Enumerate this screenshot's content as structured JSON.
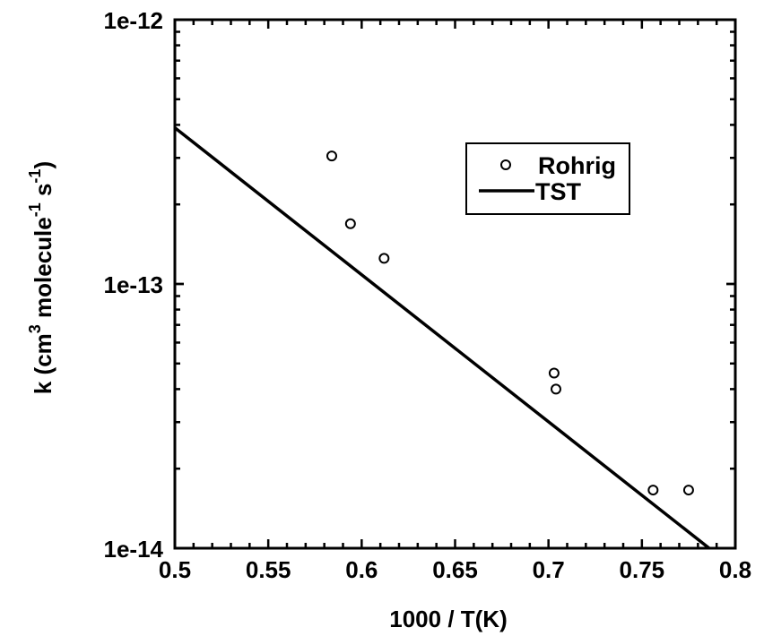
{
  "chart_data": {
    "type": "scatter",
    "title": "",
    "xlabel": "1000 / T(K)",
    "ylabel": "k (cm3 molecule-1 s-1)",
    "ylabel_parts": {
      "k": "k (cm",
      "sup1": "3",
      "mid": " molecule",
      "sup2": "-1",
      "s": " s",
      "sup3": "-1",
      "end": ")"
    },
    "xlim": [
      0.5,
      0.8
    ],
    "ylim": [
      1e-14,
      1e-12
    ],
    "yscale": "log",
    "x_ticks": [
      "0.5",
      "0.55",
      "0.6",
      "0.65",
      "0.7",
      "0.75",
      "0.8"
    ],
    "y_ticks": [
      "1e-14",
      "1e-13",
      "1e-12"
    ],
    "grid": false,
    "legend_position": "upper right (inside)",
    "series": [
      {
        "name": "Rohrig",
        "type": "scatter",
        "marker": "open-circle",
        "x": [
          0.584,
          0.594,
          0.612,
          0.703,
          0.704,
          0.756,
          0.775
        ],
        "y": [
          3.05e-13,
          1.69e-13,
          1.25e-13,
          4.6e-14,
          4e-14,
          1.66e-14,
          1.66e-14
        ]
      },
      {
        "name": "TST",
        "type": "line",
        "x": [
          0.5,
          0.786
        ],
        "y": [
          3.9e-13,
          1e-14
        ]
      }
    ]
  },
  "legend": {
    "items": [
      {
        "label": "Rohrig"
      },
      {
        "label": "TST"
      }
    ]
  },
  "axes": {
    "xlabel": "1000 / T(K)",
    "y_tick_labels": {
      "top": "1e-12",
      "mid": "1e-13",
      "bottom": "1e-14"
    },
    "x_tick_labels": [
      "0.5",
      "0.55",
      "0.6",
      "0.65",
      "0.7",
      "0.75",
      "0.8"
    ]
  }
}
